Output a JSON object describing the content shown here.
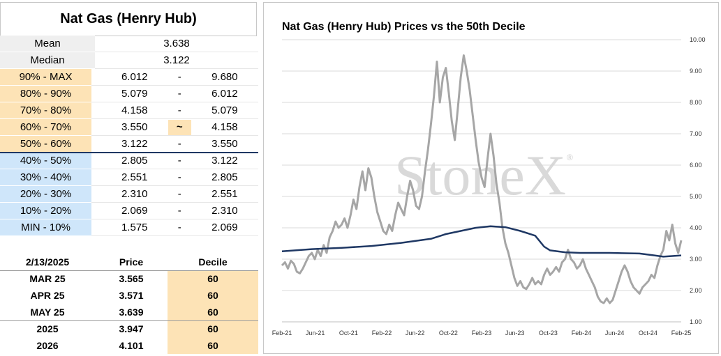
{
  "panel": {
    "title": "Nat Gas (Henry Hub)",
    "mean_label": "Mean",
    "mean_value": "3.638",
    "median_label": "Median",
    "median_value": "3.122",
    "deciles": [
      {
        "label": "90% - MAX",
        "low": "6.012",
        "sep": "-",
        "high": "9.680",
        "color": "#fde3b6"
      },
      {
        "label": "80% - 90%",
        "low": "5.079",
        "sep": "-",
        "high": "6.012",
        "color": "#fde3b6"
      },
      {
        "label": "70% - 80%",
        "low": "4.158",
        "sep": "-",
        "high": "5.079",
        "color": "#fde3b6"
      },
      {
        "label": "60% - 70%",
        "low": "3.550",
        "sep": "~",
        "high": "4.158",
        "color": "#fde3b6",
        "current": true
      },
      {
        "label": "50% - 60%",
        "low": "3.122",
        "sep": "-",
        "high": "3.550",
        "color": "#fde3b6"
      },
      {
        "label": "40% - 50%",
        "low": "2.805",
        "sep": "-",
        "high": "3.122",
        "color": "#cfe6fa"
      },
      {
        "label": "30% - 40%",
        "low": "2.551",
        "sep": "-",
        "high": "2.805",
        "color": "#cfe6fa"
      },
      {
        "label": "20% - 30%",
        "low": "2.310",
        "sep": "-",
        "high": "2.551",
        "color": "#cfe6fa"
      },
      {
        "label": "10% - 20%",
        "low": "2.069",
        "sep": "-",
        "high": "2.310",
        "color": "#cfe6fa"
      },
      {
        "label": "MIN - 10%",
        "low": "1.575",
        "sep": "-",
        "high": "2.069",
        "color": "#cfe6fa"
      }
    ]
  },
  "futures": {
    "header": {
      "date": "2/13/2025",
      "price": "Price",
      "decile": "Decile"
    },
    "rows": [
      {
        "contract": "MAR 25",
        "price": "3.565",
        "decile": "60"
      },
      {
        "contract": "APR 25",
        "price": "3.571",
        "decile": "60"
      },
      {
        "contract": "MAY 25",
        "price": "3.639",
        "decile": "60"
      },
      {
        "contract": "2025",
        "price": "3.947",
        "decile": "60"
      },
      {
        "contract": "2026",
        "price": "4.101",
        "decile": "60"
      }
    ],
    "decile_color": "#fde3b6"
  },
  "chart_data": {
    "type": "line",
    "title": "Nat Gas (Henry Hub) Prices vs the 50th Decile",
    "watermark": "StoneX",
    "ylim": [
      1.0,
      10.0
    ],
    "yticks": [
      "1.00",
      "2.00",
      "3.00",
      "4.00",
      "5.00",
      "6.00",
      "7.00",
      "8.00",
      "9.00",
      "10.00"
    ],
    "xticks": [
      "Feb-21",
      "Jun-21",
      "Oct-21",
      "Feb-22",
      "Jun-22",
      "Oct-22",
      "Feb-23",
      "Jun-23",
      "Oct-23",
      "Feb-24",
      "Jun-24",
      "Oct-24",
      "Feb-25"
    ],
    "grid": true,
    "series": [
      {
        "color": "#a6a6a6",
        "points": [
          [
            0,
            2.8
          ],
          [
            1,
            2.9
          ],
          [
            2,
            2.7
          ],
          [
            3,
            2.95
          ],
          [
            4,
            2.85
          ],
          [
            5,
            2.6
          ],
          [
            6,
            2.55
          ],
          [
            7,
            2.7
          ],
          [
            8,
            2.9
          ],
          [
            9,
            3.1
          ],
          [
            10,
            3.2
          ],
          [
            11,
            3.0
          ],
          [
            12,
            3.3
          ],
          [
            13,
            3.1
          ],
          [
            14,
            3.45
          ],
          [
            15,
            3.2
          ],
          [
            16,
            3.7
          ],
          [
            17,
            3.9
          ],
          [
            18,
            4.2
          ],
          [
            19,
            4.0
          ],
          [
            20,
            4.1
          ],
          [
            21,
            4.3
          ],
          [
            22,
            4.0
          ],
          [
            23,
            4.4
          ],
          [
            24,
            4.9
          ],
          [
            25,
            4.6
          ],
          [
            26,
            5.3
          ],
          [
            27,
            5.8
          ],
          [
            28,
            5.2
          ],
          [
            29,
            5.9
          ],
          [
            30,
            5.6
          ],
          [
            31,
            5.0
          ],
          [
            32,
            4.5
          ],
          [
            33,
            4.2
          ],
          [
            34,
            3.9
          ],
          [
            35,
            3.8
          ],
          [
            36,
            4.1
          ],
          [
            37,
            3.9
          ],
          [
            38,
            4.4
          ],
          [
            39,
            4.8
          ],
          [
            40,
            4.6
          ],
          [
            41,
            4.4
          ],
          [
            42,
            5.0
          ],
          [
            43,
            5.5
          ],
          [
            44,
            5.2
          ],
          [
            45,
            4.7
          ],
          [
            46,
            4.6
          ],
          [
            47,
            5.0
          ],
          [
            48,
            5.8
          ],
          [
            49,
            6.5
          ],
          [
            50,
            7.3
          ],
          [
            51,
            8.2
          ],
          [
            52,
            9.3
          ],
          [
            53,
            8.0
          ],
          [
            54,
            8.8
          ],
          [
            55,
            9.1
          ],
          [
            56,
            8.3
          ],
          [
            57,
            7.4
          ],
          [
            58,
            6.8
          ],
          [
            59,
            7.8
          ],
          [
            60,
            8.8
          ],
          [
            61,
            9.5
          ],
          [
            62,
            9.0
          ],
          [
            63,
            8.4
          ],
          [
            64,
            7.6
          ],
          [
            65,
            6.8
          ],
          [
            66,
            6.1
          ],
          [
            67,
            5.6
          ],
          [
            68,
            5.3
          ],
          [
            69,
            6.2
          ],
          [
            70,
            7.0
          ],
          [
            71,
            6.3
          ],
          [
            72,
            5.4
          ],
          [
            73,
            4.8
          ],
          [
            74,
            4.0
          ],
          [
            75,
            3.5
          ],
          [
            76,
            3.2
          ],
          [
            77,
            2.8
          ],
          [
            78,
            2.4
          ],
          [
            79,
            2.15
          ],
          [
            80,
            2.3
          ],
          [
            81,
            2.1
          ],
          [
            82,
            2.05
          ],
          [
            83,
            2.2
          ],
          [
            84,
            2.4
          ],
          [
            85,
            2.2
          ],
          [
            86,
            2.3
          ],
          [
            87,
            2.2
          ],
          [
            88,
            2.5
          ],
          [
            89,
            2.7
          ],
          [
            90,
            2.5
          ],
          [
            91,
            2.6
          ],
          [
            92,
            2.75
          ],
          [
            93,
            2.6
          ],
          [
            94,
            2.9
          ],
          [
            95,
            3.0
          ],
          [
            96,
            3.3
          ],
          [
            97,
            3.0
          ],
          [
            98,
            2.9
          ],
          [
            99,
            2.7
          ],
          [
            100,
            2.8
          ],
          [
            101,
            3.0
          ],
          [
            102,
            2.7
          ],
          [
            103,
            2.5
          ],
          [
            104,
            2.3
          ],
          [
            105,
            2.1
          ],
          [
            106,
            1.8
          ],
          [
            107,
            1.65
          ],
          [
            108,
            1.6
          ],
          [
            109,
            1.75
          ],
          [
            110,
            1.6
          ],
          [
            111,
            1.7
          ],
          [
            112,
            2.0
          ],
          [
            113,
            2.3
          ],
          [
            114,
            2.6
          ],
          [
            115,
            2.8
          ],
          [
            116,
            2.6
          ],
          [
            117,
            2.3
          ],
          [
            118,
            2.1
          ],
          [
            119,
            2.0
          ],
          [
            120,
            1.9
          ],
          [
            121,
            2.1
          ],
          [
            122,
            2.2
          ],
          [
            123,
            2.3
          ],
          [
            124,
            2.5
          ],
          [
            125,
            2.4
          ],
          [
            126,
            2.8
          ],
          [
            127,
            3.1
          ],
          [
            128,
            3.3
          ],
          [
            129,
            3.9
          ],
          [
            130,
            3.6
          ],
          [
            131,
            4.1
          ],
          [
            132,
            3.5
          ],
          [
            133,
            3.2
          ],
          [
            134,
            3.6
          ]
        ]
      },
      {
        "color": "#1f3864",
        "points": [
          [
            0,
            3.25
          ],
          [
            10,
            3.32
          ],
          [
            20,
            3.36
          ],
          [
            30,
            3.42
          ],
          [
            40,
            3.52
          ],
          [
            50,
            3.65
          ],
          [
            55,
            3.8
          ],
          [
            60,
            3.9
          ],
          [
            65,
            4.0
          ],
          [
            70,
            4.05
          ],
          [
            75,
            4.02
          ],
          [
            80,
            3.9
          ],
          [
            85,
            3.75
          ],
          [
            88,
            3.4
          ],
          [
            90,
            3.28
          ],
          [
            95,
            3.22
          ],
          [
            100,
            3.2
          ],
          [
            110,
            3.2
          ],
          [
            120,
            3.18
          ],
          [
            125,
            3.12
          ],
          [
            128,
            3.08
          ],
          [
            131,
            3.1
          ],
          [
            134,
            3.12
          ]
        ]
      }
    ]
  }
}
